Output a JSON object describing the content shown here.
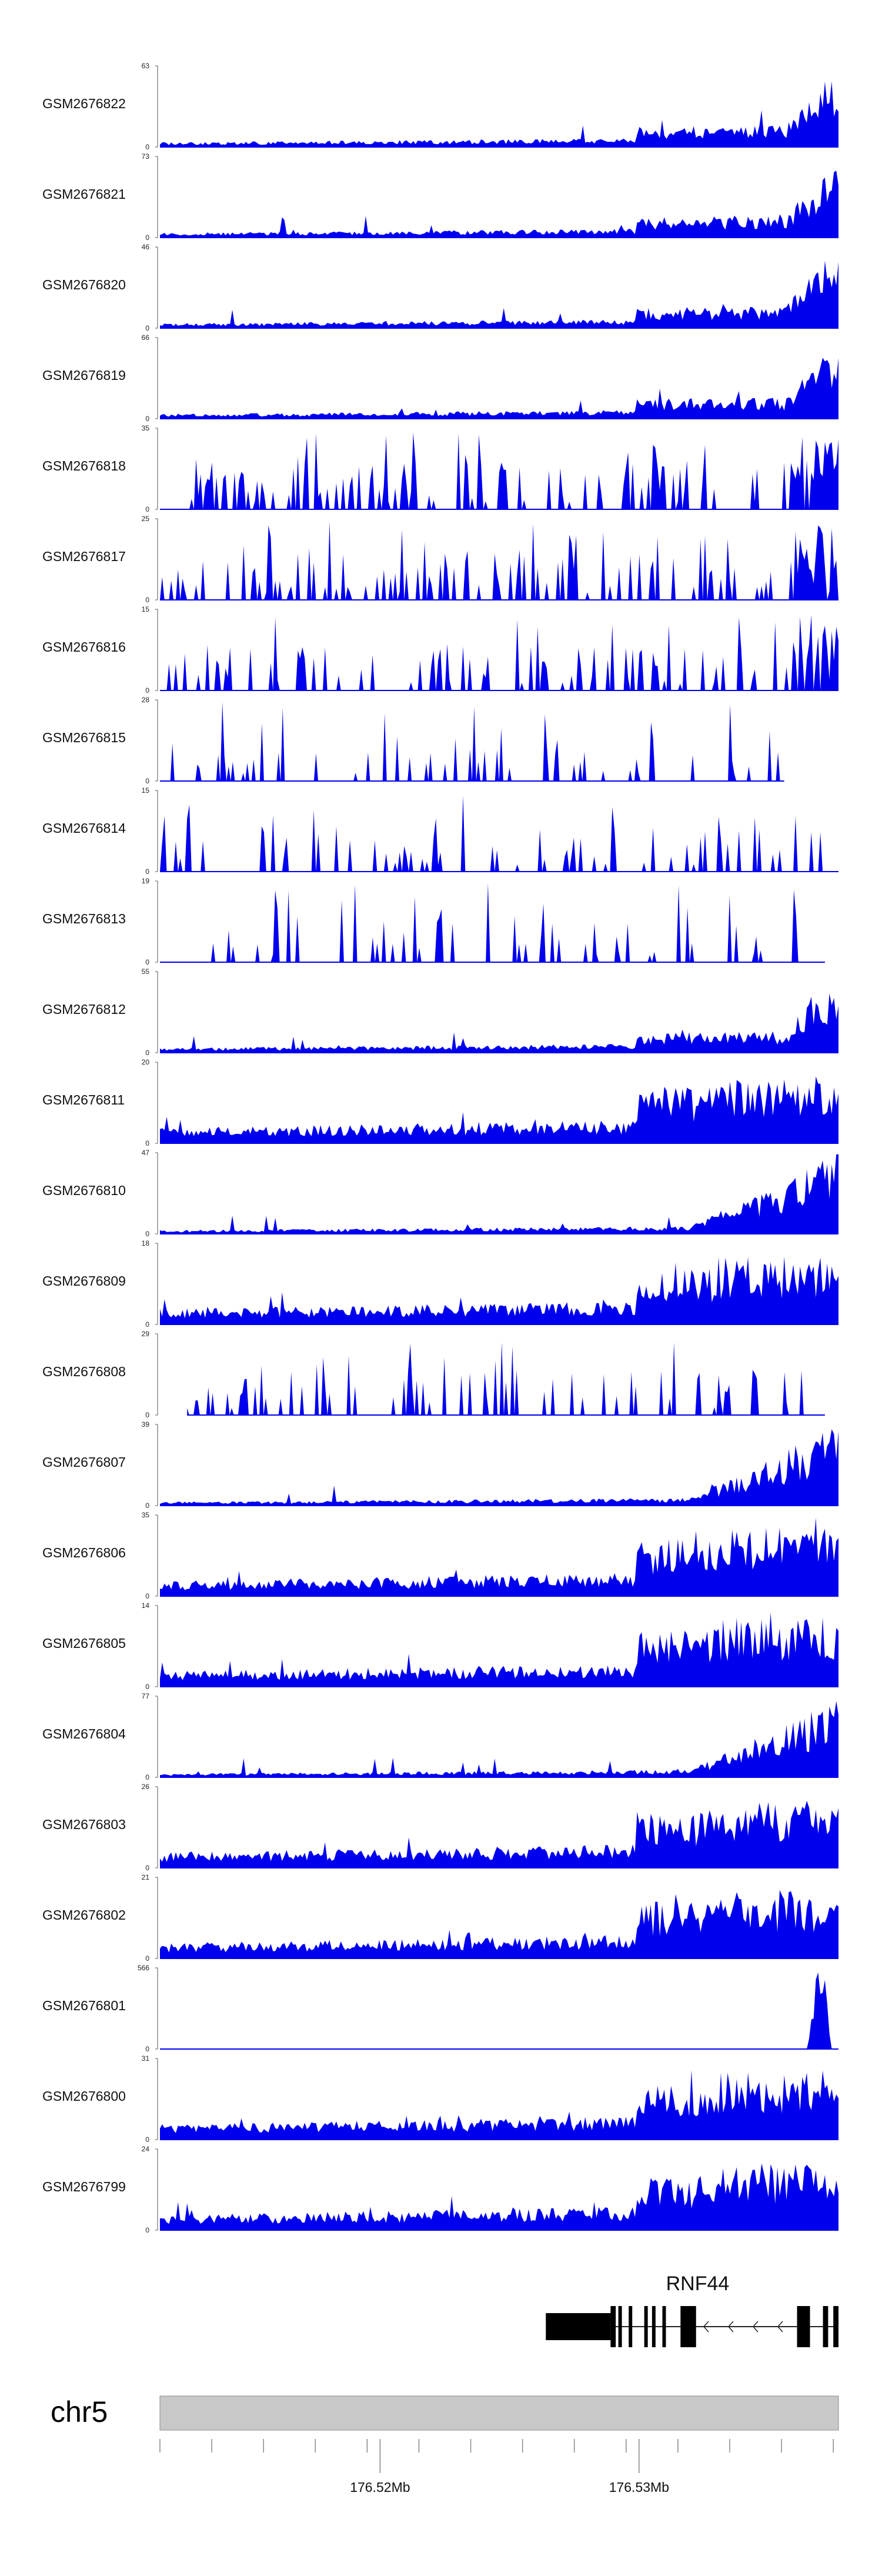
{
  "colors": {
    "signal": "#0000EE",
    "ideogram": "#C8C8C8",
    "gene": "#000000",
    "axis": "#555555"
  },
  "chart_data": {
    "type": "area",
    "title": "",
    "locus": {
      "chromosome": "chr5",
      "xlim_mb": [
        176.5115,
        176.5377
      ]
    },
    "tracks": [
      {
        "name": "GSM2676822",
        "ymax": 63,
        "ymin": 0,
        "profile": "rise-late",
        "density": 0.9
      },
      {
        "name": "GSM2676821",
        "ymax": 73,
        "ymin": 0,
        "profile": "rise-late",
        "density": 0.9
      },
      {
        "name": "GSM2676820",
        "ymax": 46,
        "ymin": 0,
        "profile": "rise-late",
        "density": 0.9
      },
      {
        "name": "GSM2676819",
        "ymax": 66,
        "ymin": 0,
        "profile": "rise-late",
        "density": 0.9
      },
      {
        "name": "GSM2676818",
        "ymax": 35,
        "ymin": 0,
        "profile": "spiky",
        "density": 0.55
      },
      {
        "name": "GSM2676817",
        "ymax": 25,
        "ymin": 0,
        "profile": "spiky",
        "density": 0.5
      },
      {
        "name": "GSM2676816",
        "ymax": 15,
        "ymin": 0,
        "profile": "spiky",
        "density": 0.6
      },
      {
        "name": "GSM2676815",
        "ymax": 28,
        "ymin": 0,
        "profile": "sparse",
        "density": 0.4,
        "end_frac": 0.92
      },
      {
        "name": "GSM2676814",
        "ymax": 15,
        "ymin": 0,
        "profile": "sparse",
        "density": 0.45
      },
      {
        "name": "GSM2676813",
        "ymax": 19,
        "ymin": 0,
        "profile": "sparse",
        "density": 0.45,
        "end_frac": 0.98
      },
      {
        "name": "GSM2676812",
        "ymax": 55,
        "ymin": 0,
        "profile": "rise-late",
        "density": 0.85
      },
      {
        "name": "GSM2676811",
        "ymax": 20,
        "ymin": 0,
        "profile": "dense-rise",
        "density": 1.0
      },
      {
        "name": "GSM2676810",
        "ymax": 47,
        "ymin": 0,
        "profile": "ramp",
        "density": 1.0
      },
      {
        "name": "GSM2676809",
        "ymax": 18,
        "ymin": 0,
        "profile": "dense-rise",
        "density": 1.0
      },
      {
        "name": "GSM2676808",
        "ymax": 29,
        "ymin": 0,
        "profile": "sparse",
        "density": 0.5,
        "start_frac": 0.04,
        "end_frac": 0.98
      },
      {
        "name": "GSM2676807",
        "ymax": 39,
        "ymin": 0,
        "profile": "ramp",
        "density": 1.0
      },
      {
        "name": "GSM2676806",
        "ymax": 35,
        "ymin": 0,
        "profile": "dense-rise",
        "density": 1.0
      },
      {
        "name": "GSM2676805",
        "ymax": 14,
        "ymin": 0,
        "profile": "dense-rise",
        "density": 1.0
      },
      {
        "name": "GSM2676804",
        "ymax": 77,
        "ymin": 0,
        "profile": "ramp",
        "density": 1.0
      },
      {
        "name": "GSM2676803",
        "ymax": 26,
        "ymin": 0,
        "profile": "dense-rise",
        "density": 1.0
      },
      {
        "name": "GSM2676802",
        "ymax": 21,
        "ymin": 0,
        "profile": "dense-rise",
        "density": 1.0
      },
      {
        "name": "GSM2676801",
        "ymax": 566,
        "ymin": 0,
        "profile": "single-peak",
        "density": 1.0
      },
      {
        "name": "GSM2676800",
        "ymax": 31,
        "ymin": 0,
        "profile": "dense-rise",
        "density": 1.0
      },
      {
        "name": "GSM2676799",
        "ymax": 24,
        "ymin": 0,
        "profile": "dense-rise",
        "density": 1.0
      }
    ],
    "gene": {
      "name": "RNF44",
      "strand": "-",
      "start_mb": 176.5264,
      "end_mb": 176.5377,
      "exons_mb": [
        [
          176.5264,
          176.5289,
          "utr"
        ],
        [
          176.5289,
          176.5291,
          "cds"
        ],
        [
          176.5292,
          176.5293,
          "cds"
        ],
        [
          176.5296,
          176.5297,
          "cds"
        ],
        [
          176.5302,
          176.5303,
          "cds"
        ],
        [
          176.5305,
          176.5306,
          "cds"
        ],
        [
          176.5309,
          176.531,
          "cds"
        ],
        [
          176.5316,
          176.5322,
          "cds"
        ],
        [
          176.5361,
          176.5366,
          "cds"
        ],
        [
          176.5371,
          176.5373,
          "cds"
        ],
        [
          176.5375,
          176.5377,
          "cds"
        ]
      ]
    },
    "axis": {
      "ticks_mb": [
        176.5115,
        176.5135,
        176.5155,
        176.5175,
        176.5195,
        176.5215,
        176.5235,
        176.5255,
        176.5275,
        176.5295,
        176.5315,
        176.5335,
        176.5355,
        176.5375
      ],
      "labels": [
        {
          "value": 176.52,
          "text": "176.52Mb"
        },
        {
          "value": 176.53,
          "text": "176.53Mb"
        }
      ]
    }
  }
}
